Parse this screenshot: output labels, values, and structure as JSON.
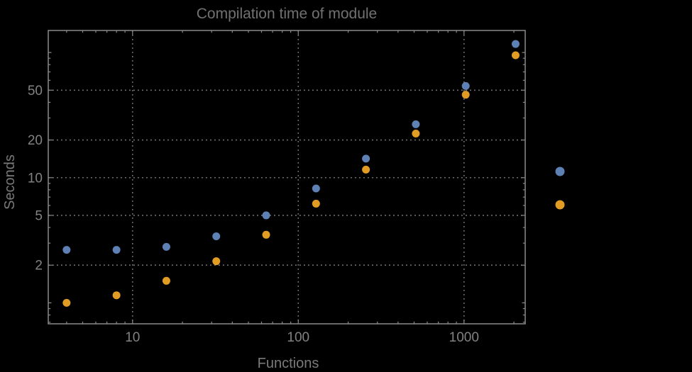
{
  "chart_data": {
    "type": "scatter",
    "title": "Compilation time of module",
    "xlabel": "Functions",
    "ylabel": "Seconds",
    "x_scale": "log",
    "y_scale": "log",
    "x_axis": {
      "labeled_ticks": [
        10,
        100,
        1000
      ],
      "minor_ticks": [
        4,
        5,
        6,
        7,
        8,
        9,
        20,
        30,
        40,
        50,
        60,
        70,
        80,
        90,
        200,
        300,
        400,
        500,
        600,
        700,
        800,
        900,
        2000
      ],
      "range": [
        3.1,
        2340
      ]
    },
    "y_axis": {
      "labeled_ticks": [
        2,
        5,
        10,
        20,
        50
      ],
      "medium_ticks": [
        1,
        100
      ],
      "minor_ticks": [
        0.7,
        0.8,
        0.9,
        3,
        4,
        6,
        7,
        8,
        9,
        30,
        40,
        60,
        70,
        80,
        90
      ],
      "range": [
        0.68,
        150
      ]
    },
    "grid": {
      "style": "dotted",
      "x_lines_at": [
        10,
        100,
        1000
      ],
      "y_lines_at": [
        2,
        5,
        10,
        20,
        50
      ]
    },
    "x": [
      4,
      8,
      16,
      32,
      64,
      128,
      256,
      512,
      1024,
      2048
    ],
    "series": [
      {
        "label": "",
        "color": "#5E81B5",
        "values": [
          2.65,
          2.65,
          2.8,
          3.4,
          5.0,
          8.2,
          14.2,
          26.7,
          54,
          117
        ]
      },
      {
        "label": "",
        "color": "#E19C24",
        "values": [
          1.0,
          1.15,
          1.5,
          2.15,
          3.5,
          6.2,
          11.6,
          22.5,
          46,
          95
        ]
      }
    ],
    "legend": {
      "position": "outside-right",
      "entries": [
        {
          "label": "",
          "color": "#5E81B5"
        },
        {
          "label": "",
          "color": "#E19C24"
        }
      ]
    }
  },
  "colors": {
    "background": "#000000",
    "frame": "#8a8a8a",
    "gridline": "#787878",
    "tick_label": "#828282",
    "axis_label": "#7a7a7a",
    "title": "#717171"
  }
}
